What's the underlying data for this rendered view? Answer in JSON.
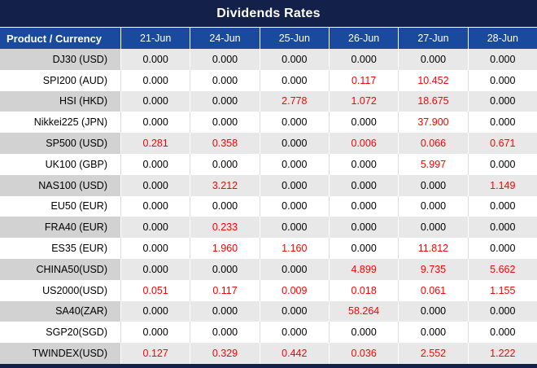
{
  "colors": {
    "title_bar_bg": "#13204a",
    "header_bg": "#1a4a9e",
    "header_text": "#ffffff",
    "row_shaded_product_bg": "#d2d2d2",
    "row_shaded_value_bg": "#e8e8e8",
    "row_white_bg": "#ffffff",
    "value_normal": "#000000",
    "value_highlight": "#ff0000",
    "footer_bar_bg": "#13204a"
  },
  "chart_data": {
    "type": "table",
    "title": "Dividends Rates",
    "columns": [
      "Product / Currency",
      "21-Jun",
      "24-Jun",
      "25-Jun",
      "26-Jun",
      "27-Jun",
      "28-Jun"
    ],
    "rows": [
      {
        "product": "DJ30 (USD)",
        "values": [
          "0.000",
          "0.000",
          "0.000",
          "0.000",
          "0.000",
          "0.000"
        ]
      },
      {
        "product": "SPI200 (AUD)",
        "values": [
          "0.000",
          "0.000",
          "0.000",
          "0.117",
          "10.452",
          "0.000"
        ]
      },
      {
        "product": "HSI (HKD)",
        "values": [
          "0.000",
          "0.000",
          "2.778",
          "1.072",
          "18.675",
          "0.000"
        ]
      },
      {
        "product": "Nikkei225 (JPN)",
        "values": [
          "0.000",
          "0.000",
          "0.000",
          "0.000",
          "37.900",
          "0.000"
        ]
      },
      {
        "product": "SP500 (USD)",
        "values": [
          "0.281",
          "0.358",
          "0.000",
          "0.006",
          "0.066",
          "0.671"
        ]
      },
      {
        "product": "UK100 (GBP)",
        "values": [
          "0.000",
          "0.000",
          "0.000",
          "0.000",
          "5.997",
          "0.000"
        ]
      },
      {
        "product": "NAS100 (USD)",
        "values": [
          "0.000",
          "3.212",
          "0.000",
          "0.000",
          "0.000",
          "1.149"
        ]
      },
      {
        "product": "EU50 (EUR)",
        "values": [
          "0.000",
          "0.000",
          "0.000",
          "0.000",
          "0.000",
          "0.000"
        ]
      },
      {
        "product": "FRA40 (EUR)",
        "values": [
          "0.000",
          "0.233",
          "0.000",
          "0.000",
          "0.000",
          "0.000"
        ]
      },
      {
        "product": "ES35 (EUR)",
        "values": [
          "0.000",
          "1.960",
          "1.160",
          "0.000",
          "11.812",
          "0.000"
        ]
      },
      {
        "product": "CHINA50(USD)",
        "values": [
          "0.000",
          "0.000",
          "0.000",
          "4.899",
          "9.735",
          "5.662"
        ]
      },
      {
        "product": "US2000(USD)",
        "values": [
          "0.051",
          "0.117",
          "0.009",
          "0.018",
          "0.061",
          "1.155"
        ]
      },
      {
        "product": "SA40(ZAR)",
        "values": [
          "0.000",
          "0.000",
          "0.000",
          "58.264",
          "0.000",
          "0.000"
        ]
      },
      {
        "product": "SGP20(SGD)",
        "values": [
          "0.000",
          "0.000",
          "0.000",
          "0.000",
          "0.000",
          "0.000"
        ]
      },
      {
        "product": "TWINDEX(USD)",
        "values": [
          "0.127",
          "0.329",
          "0.442",
          "0.036",
          "2.552",
          "1.222"
        ]
      }
    ],
    "highlight_rule": "values other than 0.000 are rendered in red",
    "zero_value": "0.000"
  }
}
